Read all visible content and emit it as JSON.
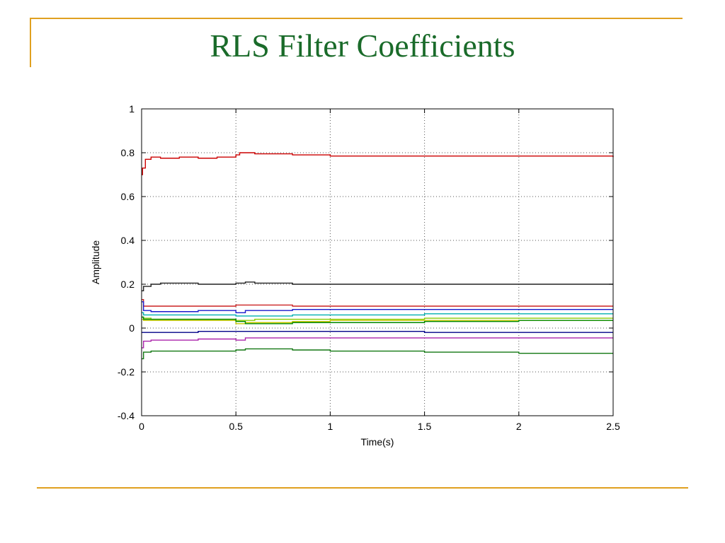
{
  "slide": {
    "title": "RLS Filter Coefficients"
  },
  "chart_data": {
    "type": "line",
    "xlabel": "Time(s)",
    "ylabel": "Amplitude",
    "xlim": [
      0,
      2.5
    ],
    "ylim": [
      -0.4,
      1
    ],
    "xticks": [
      0,
      0.5,
      1,
      1.5,
      2,
      2.5
    ],
    "yticks": [
      -0.4,
      -0.2,
      0,
      0.2,
      0.4,
      0.6,
      0.8,
      1
    ],
    "grid": true,
    "series": [
      {
        "color": "#cc0000",
        "x": [
          0,
          0.005,
          0.02,
          0.05,
          0.1,
          0.2,
          0.3,
          0.4,
          0.5,
          0.52,
          0.55,
          0.6,
          0.8,
          1.0,
          1.5,
          2.0,
          2.5
        ],
        "y": [
          0.7,
          0.73,
          0.77,
          0.78,
          0.775,
          0.78,
          0.775,
          0.78,
          0.79,
          0.8,
          0.8,
          0.795,
          0.79,
          0.785,
          0.785,
          0.785,
          0.78
        ]
      },
      {
        "color": "#222222",
        "x": [
          0,
          0.01,
          0.05,
          0.1,
          0.3,
          0.5,
          0.55,
          0.6,
          0.8,
          1.0,
          1.5,
          2.0,
          2.5
        ],
        "y": [
          0.17,
          0.19,
          0.2,
          0.205,
          0.2,
          0.205,
          0.21,
          0.205,
          0.2,
          0.2,
          0.2,
          0.2,
          0.2
        ]
      },
      {
        "color": "#cc2222",
        "x": [
          0,
          0.01,
          0.05,
          0.3,
          0.5,
          0.8,
          1.0,
          1.5,
          2.0,
          2.5
        ],
        "y": [
          0.13,
          0.1,
          0.1,
          0.1,
          0.105,
          0.1,
          0.1,
          0.1,
          0.1,
          0.1
        ]
      },
      {
        "color": "#1a1acc",
        "x": [
          0,
          0.01,
          0.05,
          0.3,
          0.5,
          0.55,
          0.8,
          1.0,
          1.5,
          2.0,
          2.5
        ],
        "y": [
          0.12,
          0.08,
          0.075,
          0.08,
          0.07,
          0.08,
          0.085,
          0.085,
          0.085,
          0.085,
          0.085
        ]
      },
      {
        "color": "#00b0b0",
        "x": [
          0,
          0.01,
          0.05,
          0.3,
          0.5,
          0.8,
          1.0,
          1.5,
          2.0,
          2.5
        ],
        "y": [
          0.07,
          0.06,
          0.06,
          0.06,
          0.055,
          0.06,
          0.06,
          0.065,
          0.065,
          0.065
        ]
      },
      {
        "color": "#88cc00",
        "x": [
          0,
          0.01,
          0.05,
          0.3,
          0.5,
          0.6,
          1.0,
          1.5,
          2.0,
          2.5
        ],
        "y": [
          0.05,
          0.045,
          0.04,
          0.04,
          0.035,
          0.04,
          0.04,
          0.045,
          0.045,
          0.045
        ]
      },
      {
        "color": "#c8c800",
        "x": [
          0,
          0.01,
          0.05,
          0.3,
          0.5,
          0.55,
          0.8,
          1.0,
          1.5,
          2.0,
          2.5
        ],
        "y": [
          0.04,
          0.035,
          0.035,
          0.035,
          0.02,
          0.025,
          0.03,
          0.035,
          0.035,
          0.035,
          0.035
        ]
      },
      {
        "color": "#008800",
        "x": [
          0,
          0.01,
          0.05,
          0.3,
          0.5,
          0.55,
          0.8,
          1.0,
          1.5,
          2.0,
          2.5
        ],
        "y": [
          0.05,
          0.04,
          0.04,
          0.04,
          0.03,
          0.02,
          0.025,
          0.025,
          0.03,
          0.035,
          0.035
        ]
      },
      {
        "color": "#000088",
        "x": [
          0,
          0.01,
          0.05,
          0.3,
          0.5,
          0.8,
          1.0,
          1.5,
          2.0,
          2.5
        ],
        "y": [
          -0.02,
          -0.02,
          -0.02,
          -0.015,
          -0.015,
          -0.015,
          -0.015,
          -0.02,
          -0.02,
          -0.02
        ]
      },
      {
        "color": "#aa22aa",
        "x": [
          0,
          0.01,
          0.05,
          0.3,
          0.5,
          0.55,
          0.8,
          1.0,
          1.5,
          2.0,
          2.5
        ],
        "y": [
          -0.09,
          -0.06,
          -0.055,
          -0.05,
          -0.055,
          -0.045,
          -0.045,
          -0.045,
          -0.045,
          -0.045,
          -0.045
        ]
      },
      {
        "color": "#117711",
        "x": [
          0,
          0.01,
          0.05,
          0.3,
          0.5,
          0.55,
          0.8,
          1.0,
          1.5,
          2.0,
          2.5
        ],
        "y": [
          -0.14,
          -0.11,
          -0.105,
          -0.105,
          -0.1,
          -0.095,
          -0.1,
          -0.105,
          -0.11,
          -0.115,
          -0.115
        ]
      }
    ]
  }
}
